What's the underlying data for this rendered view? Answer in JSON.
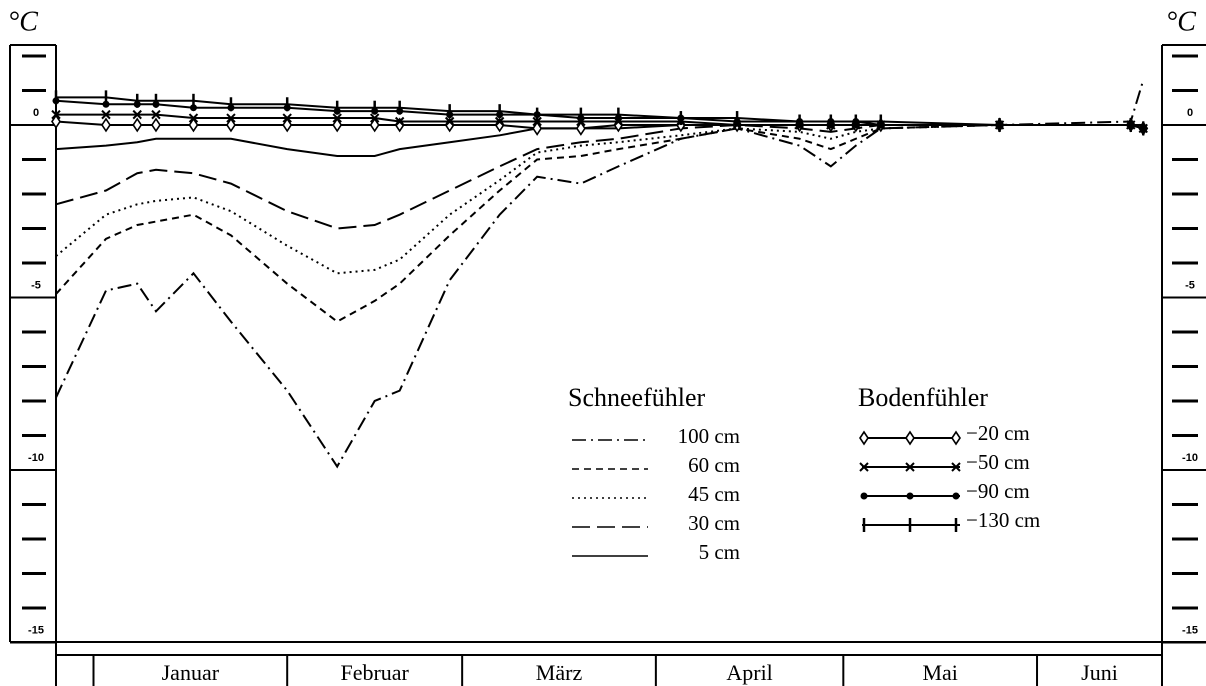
{
  "chart_data": {
    "type": "line",
    "ylabel": "°C",
    "x": [
      -6,
      2,
      7,
      10,
      16,
      22,
      31,
      39,
      45,
      49,
      57,
      65,
      71,
      78,
      84,
      94,
      103,
      113,
      118,
      122,
      126,
      145,
      166,
      168
    ],
    "xlim": [
      -6,
      171
    ],
    "categories": [
      null,
      "Januar",
      "Februar",
      "März",
      "April",
      "Mai",
      "Juni"
    ],
    "category_edges": [
      -6,
      0,
      31,
      59,
      90,
      120,
      151,
      171
    ],
    "ylim": [
      -15,
      2.3
    ],
    "yticks": [
      0,
      -5,
      -10,
      -15
    ],
    "yminor_ticks": [
      2,
      1,
      -1,
      -2,
      -3,
      -4,
      -6,
      -7,
      -8,
      -9,
      -11,
      -12,
      -13,
      -14
    ],
    "series": [
      {
        "name": "100 cm",
        "group": "Schneefühler",
        "color": "#000",
        "dash": "dashdot",
        "values": [
          -7.9,
          -4.8,
          -4.6,
          -5.4,
          -4.3,
          -5.7,
          -7.7,
          -9.9,
          -8.0,
          -7.7,
          -4.5,
          -2.6,
          -1.5,
          -1.7,
          -1.2,
          -0.4,
          -0.1,
          -0.6,
          -1.2,
          -0.6,
          -0.1,
          0,
          0.1,
          1.3
        ]
      },
      {
        "name": "60 cm",
        "group": "Schneefühler",
        "color": "#000",
        "dash": "dash",
        "values": [
          -4.9,
          -3.3,
          -2.9,
          -2.8,
          -2.6,
          -3.2,
          -4.6,
          -5.7,
          -5.1,
          -4.6,
          -3.2,
          -1.9,
          -1.0,
          -0.9,
          -0.7,
          -0.4,
          -0.1,
          -0.4,
          -0.7,
          -0.4,
          -0.1,
          0,
          0,
          0
        ]
      },
      {
        "name": "45 cm",
        "group": "Schneefühler",
        "color": "#000",
        "dash": "dot",
        "values": [
          -3.8,
          -2.6,
          -2.3,
          -2.2,
          -2.1,
          -2.5,
          -3.5,
          -4.3,
          -4.2,
          -3.9,
          -2.6,
          -1.6,
          -0.8,
          -0.6,
          -0.5,
          -0.3,
          -0.1,
          -0.2,
          -0.4,
          -0.2,
          -0.1,
          0,
          0,
          0
        ]
      },
      {
        "name": "30 cm",
        "group": "Schneefühler",
        "color": "#000",
        "dash": "longdash",
        "values": [
          -2.3,
          -1.9,
          -1.4,
          -1.3,
          -1.4,
          -1.7,
          -2.5,
          -3.0,
          -2.9,
          -2.6,
          -1.9,
          -1.2,
          -0.7,
          -0.5,
          -0.4,
          -0.1,
          0,
          -0.1,
          -0.2,
          -0.1,
          0,
          0,
          0,
          0
        ]
      },
      {
        "name": "5 cm",
        "group": "Schneefühler",
        "color": "#000",
        "dash": "solid",
        "values": [
          -0.7,
          -0.6,
          -0.5,
          -0.4,
          -0.4,
          -0.4,
          -0.7,
          -0.9,
          -0.9,
          -0.7,
          -0.5,
          -0.3,
          -0.1,
          -0.1,
          -0.1,
          0,
          0,
          0,
          0,
          0,
          0,
          0,
          0,
          0
        ]
      },
      {
        "name": "−20 cm",
        "group": "Bodenfühler",
        "color": "#000",
        "dash": "solid",
        "marker": "diamond",
        "values": [
          0.1,
          0,
          0,
          0,
          0,
          0,
          0,
          0,
          0,
          0,
          0,
          0,
          -0.1,
          -0.1,
          0,
          0,
          0,
          0,
          0,
          0,
          0,
          0,
          0,
          -0.1
        ]
      },
      {
        "name": "−50 cm",
        "group": "Bodenfühler",
        "color": "#000",
        "dash": "solid",
        "marker": "x",
        "values": [
          0.3,
          0.3,
          0.3,
          0.3,
          0.2,
          0.2,
          0.2,
          0.2,
          0.2,
          0.1,
          0.1,
          0.1,
          0.1,
          0.1,
          0.1,
          0.1,
          0,
          0,
          0,
          0,
          0,
          0,
          0,
          -0.1
        ]
      },
      {
        "name": "−90 cm",
        "group": "Bodenfühler",
        "color": "#000",
        "dash": "solid",
        "marker": "dot",
        "values": [
          0.7,
          0.6,
          0.6,
          0.6,
          0.5,
          0.5,
          0.5,
          0.4,
          0.4,
          0.4,
          0.3,
          0.3,
          0.3,
          0.2,
          0.2,
          0.2,
          0.1,
          0.1,
          0.1,
          0.1,
          0,
          0,
          0,
          -0.1
        ]
      },
      {
        "name": "−130 cm",
        "group": "Bodenfühler",
        "color": "#000",
        "dash": "solid",
        "marker": "bar",
        "values": [
          0.8,
          0.8,
          0.7,
          0.7,
          0.7,
          0.6,
          0.6,
          0.5,
          0.5,
          0.5,
          0.4,
          0.4,
          0.3,
          0.3,
          0.3,
          0.2,
          0.2,
          0.1,
          0.1,
          0.1,
          0.1,
          0,
          0,
          -0.1
        ]
      }
    ]
  }
}
